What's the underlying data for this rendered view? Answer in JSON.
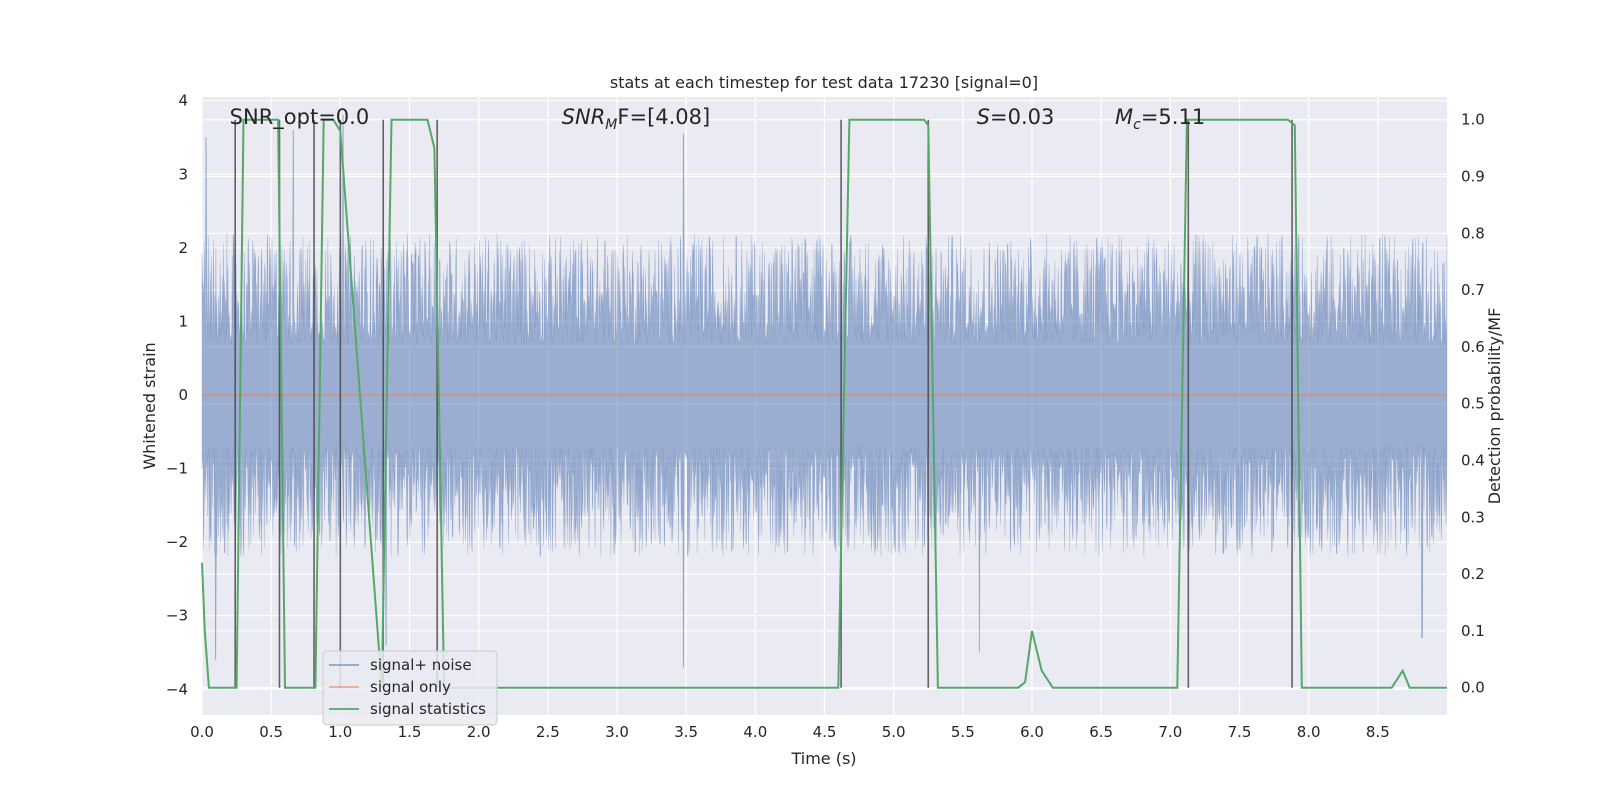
{
  "chart_data": {
    "type": "line",
    "title": "stats at each timestep for test data 17230 [signal=0]",
    "xlabel": "Time (s)",
    "ylabel": "Whitened strain",
    "y2label": "Detection probability/MF",
    "xlim": [
      0,
      9
    ],
    "ylim": [
      -4.35,
      4.05
    ],
    "y2lim": [
      -0.048,
      1.04
    ],
    "xticks": [
      0.0,
      0.5,
      1.0,
      1.5,
      2.0,
      2.5,
      3.0,
      3.5,
      4.0,
      4.5,
      5.0,
      5.5,
      6.0,
      6.5,
      7.0,
      7.5,
      8.0,
      8.5
    ],
    "xtick_labels": [
      "0.0",
      "0.5",
      "1.0",
      "1.5",
      "2.0",
      "2.5",
      "3.0",
      "3.5",
      "4.0",
      "4.5",
      "5.0",
      "5.5",
      "6.0",
      "6.5",
      "7.0",
      "7.5",
      "8.0",
      "8.5"
    ],
    "yticks": [
      4,
      3,
      2,
      1,
      0,
      -1,
      -2,
      -3,
      -4
    ],
    "ytick_labels": [
      "4",
      "3",
      "2",
      "1",
      "0",
      "−1",
      "−2",
      "−3",
      "−4"
    ],
    "y2ticks": [
      1.0,
      0.9,
      0.8,
      0.7,
      0.6,
      0.5,
      0.4,
      0.3,
      0.2,
      0.1,
      0.0
    ],
    "y2tick_labels": [
      "1.0",
      "0.9",
      "0.8",
      "0.7",
      "0.6",
      "0.5",
      "0.4",
      "0.3",
      "0.2",
      "0.1",
      "0.0"
    ],
    "grid": true,
    "legend_position": "lower-left",
    "noise_envelope": {
      "description_free": true,
      "typical_upper": 2.0,
      "typical_lower": -2.0,
      "peak_values": [
        {
          "x": 0.03,
          "y": 3.5
        },
        {
          "x": 0.66,
          "y": 3.6
        },
        {
          "x": 1.02,
          "y": 3.8
        },
        {
          "x": 3.48,
          "y": 3.55
        },
        {
          "x": 0.1,
          "y": -3.6
        },
        {
          "x": 1.33,
          "y": -3.4
        },
        {
          "x": 3.48,
          "y": -3.7
        },
        {
          "x": 5.62,
          "y": -3.5
        },
        {
          "x": 8.82,
          "y": -3.3
        }
      ]
    },
    "series": [
      {
        "name": "signal+ noise",
        "axis": "left",
        "color": "#4c72b0",
        "kind": "noise"
      },
      {
        "name": "signal only",
        "axis": "left",
        "color": "#dd8452",
        "x": [
          0,
          9
        ],
        "y": [
          0,
          0
        ]
      },
      {
        "name": "signal statistics",
        "axis": "right",
        "color": "#55a868",
        "x": [
          0.0,
          0.02,
          0.05,
          0.25,
          0.3,
          0.55,
          0.6,
          0.75,
          0.82,
          0.88,
          0.95,
          1.0,
          1.3,
          1.37,
          1.63,
          1.68,
          1.75,
          2.3,
          4.6,
          4.68,
          5.22,
          5.25,
          5.32,
          5.38,
          5.9,
          5.95,
          6.0,
          6.07,
          6.15,
          6.2,
          7.05,
          7.12,
          7.18,
          7.85,
          7.9,
          7.95,
          8.6,
          8.68,
          8.73,
          8.8,
          9.0
        ],
        "y": [
          0.22,
          0.1,
          0.0,
          0.0,
          1.0,
          1.0,
          0.0,
          0.0,
          0.0,
          1.0,
          1.0,
          0.98,
          0.0,
          1.0,
          1.0,
          0.95,
          0.0,
          0.0,
          0.0,
          1.0,
          1.0,
          0.99,
          0.0,
          0.0,
          0.0,
          0.01,
          0.1,
          0.03,
          0.0,
          0.0,
          0.0,
          1.0,
          1.0,
          1.0,
          0.99,
          0.0,
          0.0,
          0.03,
          0.0,
          0.0,
          0.0
        ]
      }
    ],
    "vlines": [
      0.24,
      0.56,
      0.81,
      1.0,
      1.31,
      1.7,
      4.62,
      5.25,
      7.13,
      7.88
    ],
    "vline_color": "#404040",
    "annotations": [
      {
        "text": "SNR_opt=0.0",
        "x": 0.2
      },
      {
        "main": "SNR",
        "sub": "M",
        "tail": "F=[4.08]",
        "x": 2.6
      },
      {
        "main": "S",
        "tail": "=0.03",
        "x": 5.6
      },
      {
        "main": "M",
        "sub": "c",
        "tail": "=5.11",
        "x": 6.6
      }
    ],
    "legend": [
      {
        "label": "signal+ noise",
        "color": "#4c72b0"
      },
      {
        "label": "signal only",
        "color": "#dd8452"
      },
      {
        "label": "signal statistics",
        "color": "#55a868"
      }
    ]
  }
}
